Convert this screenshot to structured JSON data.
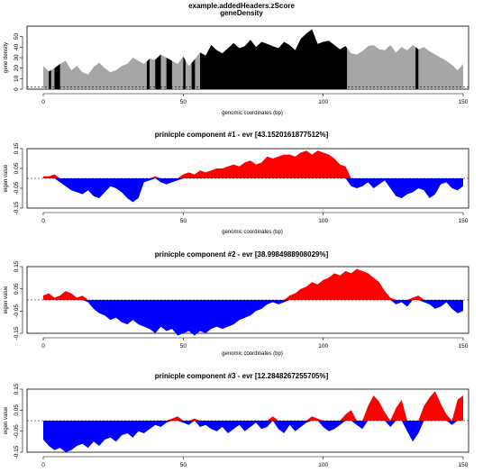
{
  "colors": {
    "positive": "#ff0000",
    "negative": "#0000ff",
    "density_dark": "#000000",
    "density_light": "#a6a6a6"
  },
  "chart_data": [
    {
      "type": "area",
      "title": "example.addedHeaders.zScore",
      "subtitle": "geneDensity",
      "xlabel": "genomic coordinates (bp)",
      "ylabel": "gene density",
      "xlim": [
        0,
        150
      ],
      "ylim": [
        0,
        60
      ],
      "xticks": [
        "0",
        "50",
        "100",
        "150"
      ],
      "yticks": [
        "0",
        "10",
        "20",
        "30",
        "40",
        "50"
      ],
      "gridlines": [
        0,
        2
      ],
      "x": [
        0,
        2,
        4,
        6,
        8,
        10,
        12,
        14,
        16,
        18,
        20,
        22,
        24,
        26,
        28,
        30,
        32,
        34,
        36,
        38,
        40,
        42,
        44,
        46,
        48,
        50,
        52,
        54,
        56,
        58,
        60,
        62,
        64,
        66,
        68,
        70,
        72,
        74,
        76,
        78,
        80,
        82,
        84,
        86,
        88,
        90,
        92,
        94,
        96,
        98,
        100,
        102,
        104,
        106,
        108,
        110,
        112,
        114,
        116,
        118,
        120,
        122,
        124,
        126,
        128,
        130,
        132,
        134,
        136,
        138,
        140,
        142,
        144,
        146,
        148,
        150
      ],
      "values": [
        22,
        17,
        20,
        24,
        27,
        18,
        22,
        16,
        14,
        21,
        25,
        20,
        16,
        18,
        22,
        24,
        30,
        27,
        24,
        29,
        28,
        33,
        30,
        27,
        24,
        31,
        22,
        28,
        35,
        32,
        42,
        37,
        34,
        39,
        44,
        39,
        41,
        47,
        40,
        45,
        43,
        41,
        39,
        45,
        42,
        37,
        48,
        53,
        57,
        43,
        45,
        46,
        42,
        38,
        41,
        34,
        33,
        36,
        41,
        42,
        38,
        37,
        42,
        35,
        40,
        37,
        42,
        38,
        40,
        36,
        33,
        30,
        27,
        23,
        18,
        24
      ],
      "dark_bins": [
        [
          2,
          2.8
        ],
        [
          4,
          6
        ],
        [
          37,
          38
        ],
        [
          40,
          42
        ],
        [
          44,
          46
        ],
        [
          50,
          50.8
        ],
        [
          53,
          54.2
        ],
        [
          56,
          108.5
        ],
        [
          133,
          134
        ]
      ]
    },
    {
      "type": "area",
      "title": "prinicple component #1 - evr [43.1520161877512%]",
      "xlabel": "genomic coordinates (bp)",
      "ylabel": "eigen value",
      "xlim": [
        0,
        150
      ],
      "ylim": [
        -0.15,
        0.15
      ],
      "xticks": [
        "0",
        "50",
        "100",
        "150"
      ],
      "yticks": [
        "-0.15",
        "-0.05",
        "0.05",
        "0.15"
      ],
      "x": [
        0,
        2,
        4,
        6,
        8,
        10,
        12,
        14,
        16,
        18,
        20,
        22,
        24,
        26,
        28,
        30,
        32,
        34,
        36,
        38,
        40,
        42,
        44,
        46,
        48,
        50,
        52,
        54,
        56,
        58,
        60,
        62,
        64,
        66,
        68,
        70,
        72,
        74,
        76,
        78,
        80,
        82,
        84,
        86,
        88,
        90,
        92,
        94,
        96,
        98,
        100,
        102,
        104,
        106,
        108,
        110,
        112,
        114,
        116,
        118,
        120,
        122,
        124,
        126,
        128,
        130,
        132,
        134,
        136,
        138,
        140,
        142,
        144,
        146,
        148,
        150
      ],
      "values": [
        0.01,
        0.01,
        0.02,
        -0.02,
        -0.04,
        -0.06,
        -0.07,
        -0.08,
        -0.06,
        -0.09,
        -0.1,
        -0.07,
        -0.04,
        -0.05,
        -0.07,
        -0.1,
        -0.12,
        -0.1,
        -0.02,
        -0.01,
        0.01,
        -0.02,
        -0.03,
        -0.02,
        -0.01,
        0.02,
        0.03,
        0.02,
        0.04,
        0.03,
        0.04,
        0.05,
        0.05,
        0.06,
        0.07,
        0.06,
        0.08,
        0.09,
        0.07,
        0.08,
        0.11,
        0.1,
        0.11,
        0.12,
        0.12,
        0.11,
        0.13,
        0.14,
        0.12,
        0.14,
        0.13,
        0.12,
        0.1,
        0.07,
        0.06,
        -0.04,
        -0.05,
        -0.04,
        -0.02,
        -0.05,
        -0.03,
        -0.01,
        -0.05,
        -0.09,
        -0.1,
        -0.08,
        -0.07,
        -0.05,
        -0.06,
        -0.1,
        -0.08,
        -0.03,
        -0.02,
        -0.05,
        -0.06,
        -0.04
      ]
    },
    {
      "type": "area",
      "title": "prinicple component #2 - evr [38.9984988908029%]",
      "xlabel": "genomic coordinates (bp)",
      "ylabel": "eigen value",
      "xlim": [
        0,
        150
      ],
      "ylim": [
        -0.15,
        0.15
      ],
      "xticks": [
        "0",
        "50",
        "100",
        "150"
      ],
      "yticks": [
        "-0.15",
        "-0.05",
        "0.05",
        "0.15"
      ],
      "x": [
        0,
        2,
        4,
        6,
        8,
        10,
        12,
        14,
        16,
        18,
        20,
        22,
        24,
        26,
        28,
        30,
        32,
        34,
        36,
        38,
        40,
        42,
        44,
        46,
        48,
        50,
        52,
        54,
        56,
        58,
        60,
        62,
        64,
        66,
        68,
        70,
        72,
        74,
        76,
        78,
        80,
        82,
        84,
        86,
        88,
        90,
        92,
        94,
        96,
        98,
        100,
        102,
        104,
        106,
        108,
        110,
        112,
        114,
        116,
        118,
        120,
        122,
        124,
        126,
        128,
        130,
        132,
        134,
        136,
        138,
        140,
        142,
        144,
        146,
        148,
        150
      ],
      "values": [
        0.02,
        0.03,
        0.01,
        0.02,
        0.04,
        0.03,
        0.01,
        0.02,
        -0.01,
        -0.04,
        -0.06,
        -0.07,
        -0.09,
        -0.08,
        -0.1,
        -0.11,
        -0.09,
        -0.11,
        -0.12,
        -0.13,
        -0.15,
        -0.12,
        -0.14,
        -0.13,
        -0.16,
        -0.15,
        -0.14,
        -0.16,
        -0.14,
        -0.15,
        -0.13,
        -0.12,
        -0.13,
        -0.12,
        -0.11,
        -0.09,
        -0.08,
        -0.07,
        -0.05,
        -0.04,
        -0.02,
        -0.01,
        -0.02,
        -0.01,
        0.02,
        0.03,
        0.05,
        0.06,
        0.08,
        0.07,
        0.09,
        0.1,
        0.12,
        0.11,
        0.13,
        0.12,
        0.14,
        0.13,
        0.12,
        0.1,
        0.08,
        0.04,
        0.01,
        -0.02,
        -0.01,
        -0.03,
        0.01,
        0.02,
        -0.01,
        -0.02,
        -0.04,
        -0.03,
        -0.01,
        -0.04,
        -0.06,
        -0.05
      ]
    },
    {
      "type": "area",
      "title": "prinicple component #3 - evr [12.2848267255705%]",
      "xlabel": "",
      "ylabel": "eigen value",
      "xlim": [
        0,
        150
      ],
      "ylim": [
        -0.15,
        0.15
      ],
      "xticks": [
        "0",
        "50",
        "100",
        "150"
      ],
      "yticks": [
        "-0.15",
        "-0.05",
        "0.05",
        "0.15"
      ],
      "x": [
        0,
        2,
        4,
        6,
        8,
        10,
        12,
        14,
        16,
        18,
        20,
        22,
        24,
        26,
        28,
        30,
        32,
        34,
        36,
        38,
        40,
        42,
        44,
        46,
        48,
        50,
        52,
        54,
        56,
        58,
        60,
        62,
        64,
        66,
        68,
        70,
        72,
        74,
        76,
        78,
        80,
        82,
        84,
        86,
        88,
        90,
        92,
        94,
        96,
        98,
        100,
        102,
        104,
        106,
        108,
        110,
        112,
        114,
        116,
        118,
        120,
        122,
        124,
        126,
        128,
        130,
        132,
        134,
        136,
        138,
        140,
        142,
        144,
        146,
        148,
        150
      ],
      "values": [
        -0.09,
        -0.12,
        -0.14,
        -0.13,
        -0.15,
        -0.14,
        -0.12,
        -0.11,
        -0.13,
        -0.1,
        -0.12,
        -0.09,
        -0.08,
        -0.1,
        -0.07,
        -0.06,
        -0.08,
        -0.05,
        -0.06,
        -0.04,
        -0.02,
        -0.03,
        -0.01,
        0.01,
        0.02,
        -0.01,
        -0.02,
        0.01,
        -0.03,
        -0.02,
        -0.04,
        -0.05,
        -0.03,
        -0.06,
        -0.04,
        -0.02,
        -0.05,
        -0.03,
        -0.01,
        -0.04,
        -0.03,
        0.02,
        -0.04,
        -0.06,
        -0.02,
        -0.05,
        -0.03,
        -0.01,
        0.02,
        0.01,
        -0.03,
        -0.05,
        -0.04,
        -0.02,
        0.03,
        0.05,
        -0.02,
        -0.04,
        0.07,
        0.12,
        0.09,
        0.04,
        -0.03,
        0.06,
        0.1,
        -0.05,
        -0.1,
        -0.06,
        0.07,
        0.11,
        0.14,
        0.08,
        0.03,
        -0.02,
        0.1,
        0.12
      ]
    }
  ]
}
